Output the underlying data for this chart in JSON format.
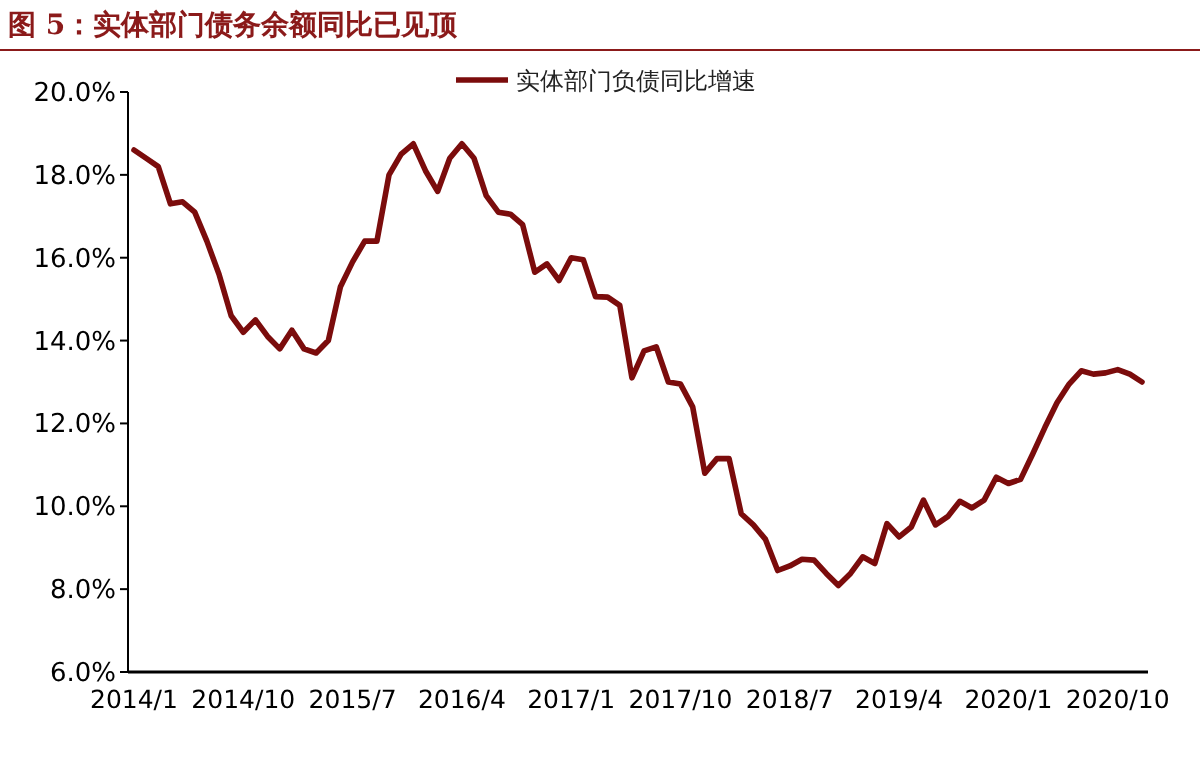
{
  "chart_data": {
    "type": "line",
    "title": "图 5：实体部门债务余额同比已见顶",
    "categories": [
      "2014/1",
      null,
      null,
      null,
      null,
      null,
      null,
      null,
      null,
      "2014/10",
      null,
      null,
      null,
      null,
      null,
      null,
      null,
      null,
      "2015/7",
      null,
      null,
      null,
      null,
      null,
      null,
      null,
      null,
      "2016/4",
      null,
      null,
      null,
      null,
      null,
      null,
      null,
      null,
      "2017/1",
      null,
      null,
      null,
      null,
      null,
      null,
      null,
      null,
      "2017/10",
      null,
      null,
      null,
      null,
      null,
      null,
      null,
      null,
      "2018/7",
      null,
      null,
      null,
      null,
      null,
      null,
      null,
      null,
      "2019/4",
      null,
      null,
      null,
      null,
      null,
      null,
      null,
      null,
      "2020/1",
      null,
      null,
      null,
      null,
      null,
      null,
      null,
      null,
      "2020/10",
      null,
      null
    ],
    "series": [
      {
        "name": "实体部门负债同比增速",
        "color": "#7b0c0c",
        "values": [
          18.6,
          18.4,
          18.2,
          17.3,
          17.35,
          17.1,
          16.4,
          15.6,
          14.6,
          14.2,
          14.5,
          14.1,
          13.8,
          14.25,
          13.8,
          13.7,
          14.0,
          15.3,
          15.9,
          16.4,
          16.4,
          18.0,
          18.5,
          18.75,
          18.1,
          17.6,
          18.4,
          18.75,
          18.4,
          17.5,
          17.1,
          17.05,
          16.8,
          15.65,
          15.85,
          15.45,
          16.0,
          15.95,
          15.06,
          15.05,
          14.85,
          13.1,
          13.75,
          13.85,
          13.0,
          12.95,
          12.4,
          10.8,
          11.15,
          11.15,
          9.82,
          9.55,
          9.2,
          8.45,
          8.56,
          8.72,
          8.7,
          8.38,
          8.09,
          8.38,
          8.78,
          8.62,
          9.58,
          9.26,
          9.5,
          10.15,
          9.55,
          9.75,
          10.12,
          9.96,
          10.15,
          10.7,
          10.55,
          10.65,
          11.26,
          11.9,
          12.5,
          12.95,
          13.27,
          13.19,
          13.22,
          13.3,
          13.19,
          13.0
        ]
      }
    ],
    "ylim": [
      6,
      20
    ],
    "yticks": [
      {
        "value": 6,
        "label": "6.0%"
      },
      {
        "value": 8,
        "label": "8.0%"
      },
      {
        "value": 10,
        "label": "10.0%"
      },
      {
        "value": 12,
        "label": "12.0%"
      },
      {
        "value": 14,
        "label": "14.0%"
      },
      {
        "value": 16,
        "label": "16.0%"
      },
      {
        "value": 18,
        "label": "18.0%"
      },
      {
        "value": 20,
        "label": "20.0%"
      }
    ],
    "legend": "top right",
    "line_style": "solid"
  }
}
